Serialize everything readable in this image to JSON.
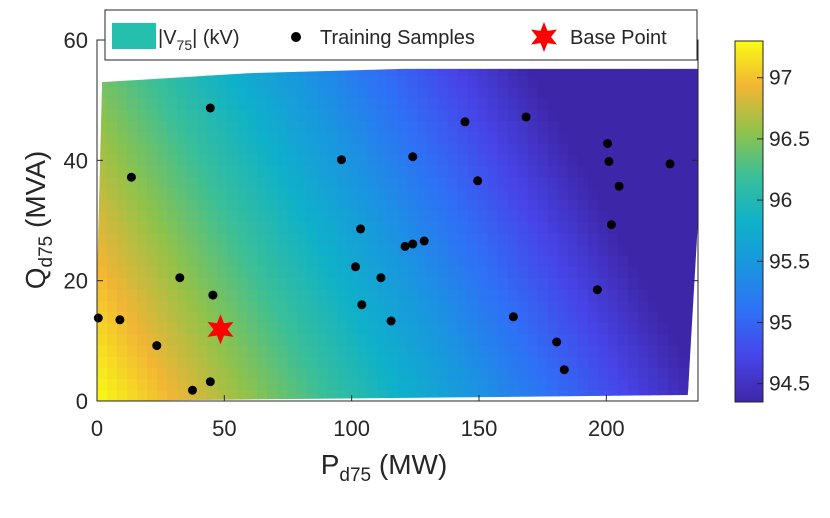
{
  "chart_data": {
    "type": "heatmap",
    "title": "",
    "xlabel_main": "P",
    "xlabel_sub": "d75",
    "xlabel_unit": " (MW)",
    "ylabel_main": "Q",
    "ylabel_sub": "d75",
    "ylabel_unit": " (MVA)",
    "xlim": [
      0,
      236
    ],
    "ylim": [
      0,
      60
    ],
    "xticks": [
      0,
      50,
      100,
      150,
      200
    ],
    "yticks": [
      0,
      20,
      40,
      60
    ],
    "colorbar": {
      "min": 94.35,
      "max": 97.3,
      "ticks": [
        94.5,
        95,
        95.5,
        96,
        96.5,
        97
      ],
      "tick_labels": [
        "94.5",
        "95",
        "95.5",
        "96",
        "96.5",
        "97"
      ],
      "colormap": "parula"
    },
    "surface_region": [
      [
        2,
        53
      ],
      [
        60,
        54.5
      ],
      [
        120,
        55.2
      ],
      [
        236,
        55.2
      ],
      [
        236,
        30
      ],
      [
        232,
        1
      ],
      [
        0,
        0
      ],
      [
        0,
        20
      ]
    ],
    "value_model": {
      "base": 97.3,
      "per_mw": -0.0123,
      "per_mva": -0.0156
    },
    "legend": {
      "position": "top",
      "surface_label_pre": "|V",
      "surface_label_sub": "75",
      "surface_label_post": "| (kV)",
      "samples_label": "Training Samples",
      "base_label": "Base Point"
    },
    "series": [
      {
        "name": "Training Samples",
        "marker": "dot",
        "color": "#000000",
        "points": [
          [
            0.5,
            13.8
          ],
          [
            9,
            13.5
          ],
          [
            23.5,
            9.2
          ],
          [
            32.5,
            20.5
          ],
          [
            37.5,
            1.8
          ],
          [
            44.5,
            3.2
          ],
          [
            45.5,
            17.6
          ],
          [
            13.5,
            37.2
          ],
          [
            44.5,
            48.7
          ],
          [
            96,
            40.1
          ],
          [
            103.5,
            28.6
          ],
          [
            101.5,
            22.3
          ],
          [
            104,
            16
          ],
          [
            111.5,
            20.5
          ],
          [
            115.5,
            13.3
          ],
          [
            121,
            25.7
          ],
          [
            124,
            26.1
          ],
          [
            128.5,
            26.6
          ],
          [
            124,
            40.6
          ],
          [
            144.5,
            46.4
          ],
          [
            149.5,
            36.6
          ],
          [
            163.5,
            14
          ],
          [
            168.5,
            47.2
          ],
          [
            180.5,
            9.8
          ],
          [
            183.5,
            5.2
          ],
          [
            196.5,
            18.5
          ],
          [
            200.5,
            42.8
          ],
          [
            201,
            39.8
          ],
          [
            202,
            29.3
          ],
          [
            205,
            35.7
          ],
          [
            225,
            39.4
          ]
        ]
      },
      {
        "name": "Base Point",
        "marker": "star",
        "color": "#ff0000",
        "points": [
          [
            48.5,
            11.9
          ]
        ]
      }
    ]
  }
}
